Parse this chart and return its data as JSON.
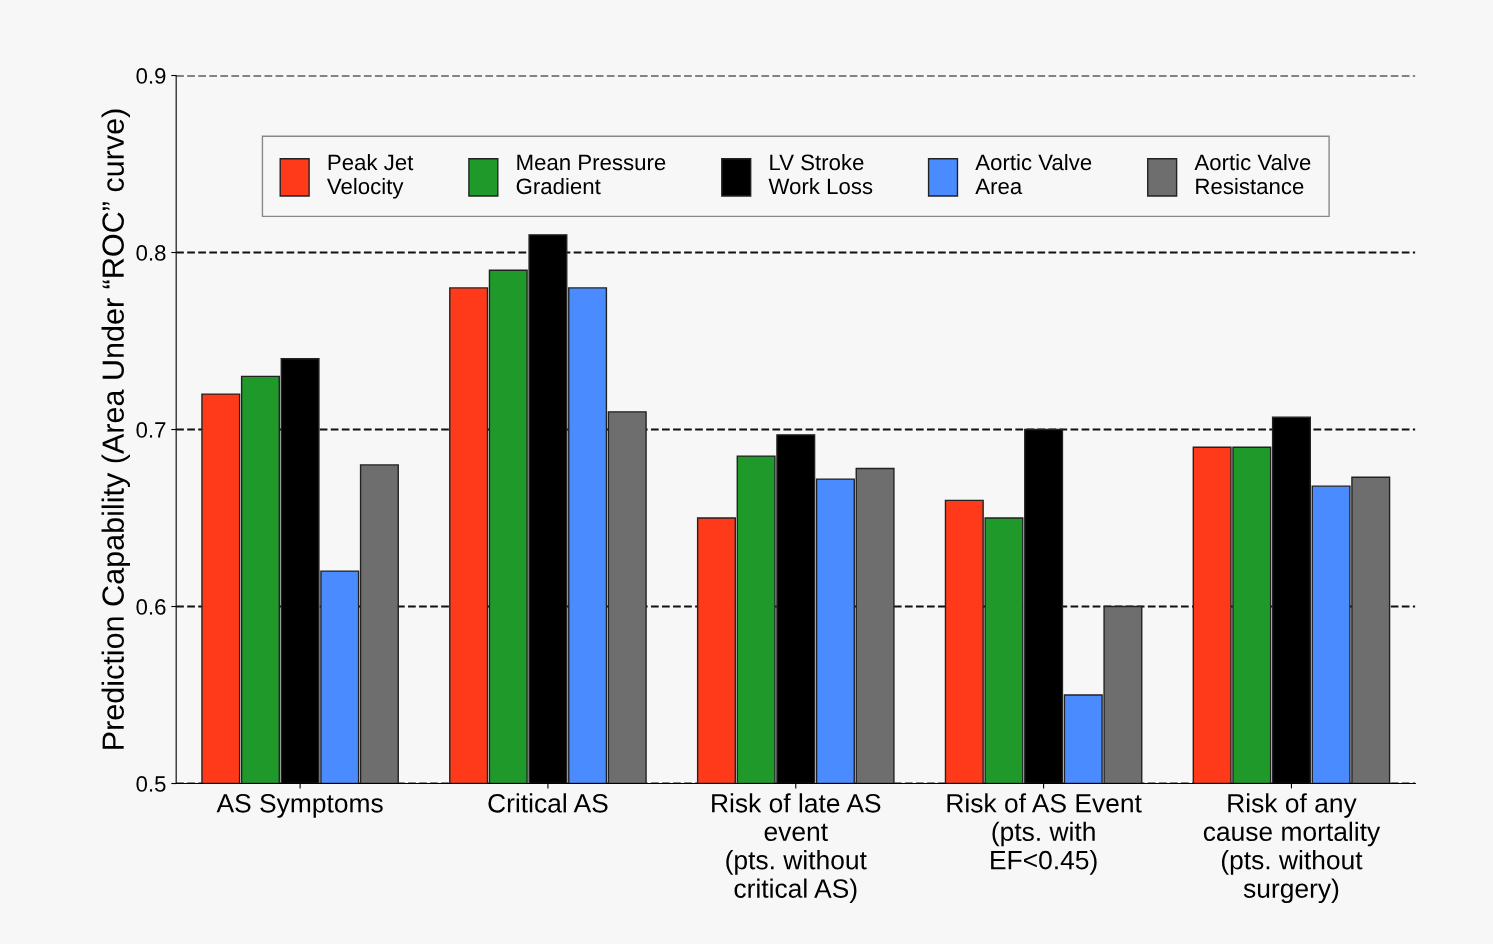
{
  "chart_data": {
    "type": "bar",
    "ylabel": "Prediction Capability (Area Under “ROC” curve)",
    "categories": [
      "AS Symptoms",
      "Critical AS",
      "Risk of late AS\nevent\n(pts. without\ncritical AS)",
      "Risk of AS Event\n(pts. with\nEF<0.45)",
      "Risk of any\ncause mortality\n(pts. without\nsurgery)"
    ],
    "series": [
      {
        "name": "Peak Jet\nVelocity",
        "color": "#ff3a1a",
        "values": [
          0.72,
          0.78,
          0.65,
          0.66,
          0.69
        ]
      },
      {
        "name": "Mean Pressure\nGradient",
        "color": "#1f9a2a",
        "values": [
          0.73,
          0.79,
          0.685,
          0.65,
          0.69
        ]
      },
      {
        "name": "LV Stroke\nWork Loss",
        "color": "#000000",
        "values": [
          0.74,
          0.81,
          0.697,
          0.7,
          0.707
        ]
      },
      {
        "name": "Aortic Valve\nArea",
        "color": "#4a8cff",
        "values": [
          0.62,
          0.78,
          0.672,
          0.55,
          0.668
        ]
      },
      {
        "name": "Aortic Valve\nResistance",
        "color": "#6e6e6e",
        "values": [
          0.68,
          0.71,
          0.678,
          0.6,
          0.673
        ]
      }
    ],
    "ylim": [
      0.5,
      0.9
    ],
    "yticks": [
      0.5,
      0.6,
      0.7,
      0.8,
      0.9
    ],
    "grid": "y",
    "line_style": "dashed",
    "legend": "top"
  }
}
